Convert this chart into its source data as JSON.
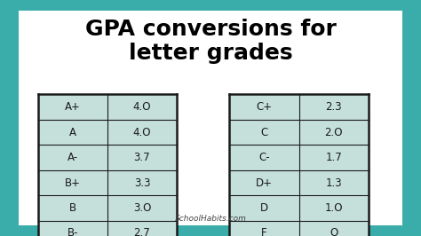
{
  "title": "GPA conversions for\nletter grades",
  "title_fontsize": 18,
  "title_fontweight": "bold",
  "outer_bg_color": "#3aacaa",
  "inner_bg_color": "#ffffff",
  "table_bg_color": "#c5e0da",
  "table_border_color": "#1a1a1a",
  "cell_text_color": "#1a1a1a",
  "watermark": "SchoolHabits.com",
  "border_thickness": 0.045,
  "left_table": [
    [
      "A+",
      "4.O"
    ],
    [
      "A",
      "4.O"
    ],
    [
      "A-",
      "3.7"
    ],
    [
      "B+",
      "3.3"
    ],
    [
      "B",
      "3.O"
    ],
    [
      "B-",
      "2.7"
    ]
  ],
  "right_table": [
    [
      "C+",
      "2.3"
    ],
    [
      "C",
      "2.O"
    ],
    [
      "C-",
      "1.7"
    ],
    [
      "D+",
      "1.3"
    ],
    [
      "D",
      "1.O"
    ],
    [
      "F",
      "O"
    ]
  ]
}
